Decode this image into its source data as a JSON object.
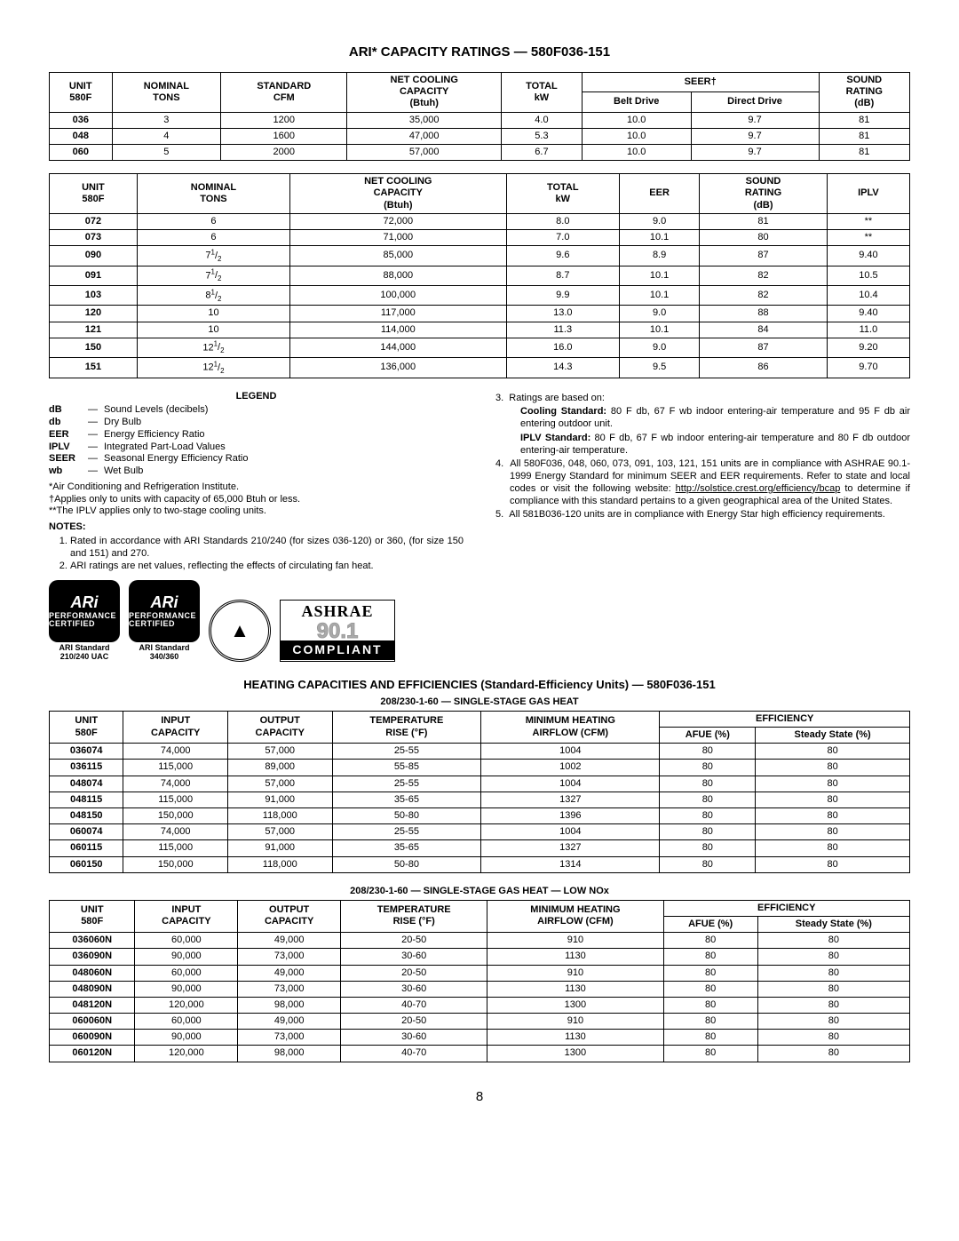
{
  "page_title": "ARI* CAPACITY RATINGS — 580F036-151",
  "page_number": "8",
  "table1": {
    "headers": {
      "unit": "UNIT 580F",
      "nominal_tons": "NOMINAL TONS",
      "standard_cfm": "STANDARD CFM",
      "net_cooling": "NET COOLING CAPACITY (Btuh)",
      "total_kw": "TOTAL kW",
      "seer": "SEER†",
      "belt_drive": "Belt Drive",
      "direct_drive": "Direct Drive",
      "sound": "SOUND RATING (dB)"
    },
    "rows": [
      {
        "u": "036",
        "tons": "3",
        "cfm": "1200",
        "net": "35,000",
        "kw": "4.0",
        "bd": "10.0",
        "dd": "9.7",
        "db": "81"
      },
      {
        "u": "048",
        "tons": "4",
        "cfm": "1600",
        "net": "47,000",
        "kw": "5.3",
        "bd": "10.0",
        "dd": "9.7",
        "db": "81"
      },
      {
        "u": "060",
        "tons": "5",
        "cfm": "2000",
        "net": "57,000",
        "kw": "6.7",
        "bd": "10.0",
        "dd": "9.7",
        "db": "81"
      }
    ]
  },
  "table2": {
    "headers": {
      "unit": "UNIT 580F",
      "nominal_tons": "NOMINAL TONS",
      "net_cooling": "NET COOLING CAPACITY (Btuh)",
      "total_kw": "TOTAL kW",
      "eer": "EER",
      "sound": "SOUND RATING (dB)",
      "iplv": "IPLV"
    },
    "rows": [
      {
        "u": "072",
        "tons": "6",
        "net": "72,000",
        "kw": "8.0",
        "eer": "9.0",
        "db": "81",
        "ip": "**"
      },
      {
        "u": "073",
        "tons": "6",
        "net": "71,000",
        "kw": "7.0",
        "eer": "10.1",
        "db": "80",
        "ip": "**"
      },
      {
        "u": "090",
        "tons": "7½",
        "net": "85,000",
        "kw": "9.6",
        "eer": "8.9",
        "db": "87",
        "ip": "9.40"
      },
      {
        "u": "091",
        "tons": "7½",
        "net": "88,000",
        "kw": "8.7",
        "eer": "10.1",
        "db": "82",
        "ip": "10.5"
      },
      {
        "u": "103",
        "tons": "8½",
        "net": "100,000",
        "kw": "9.9",
        "eer": "10.1",
        "db": "82",
        "ip": "10.4"
      },
      {
        "u": "120",
        "tons": "10",
        "net": "117,000",
        "kw": "13.0",
        "eer": "9.0",
        "db": "88",
        "ip": "9.40"
      },
      {
        "u": "121",
        "tons": "10",
        "net": "114,000",
        "kw": "11.3",
        "eer": "10.1",
        "db": "84",
        "ip": "11.0"
      },
      {
        "u": "150",
        "tons": "12½",
        "net": "144,000",
        "kw": "16.0",
        "eer": "9.0",
        "db": "87",
        "ip": "9.20"
      },
      {
        "u": "151",
        "tons": "12½",
        "net": "136,000",
        "kw": "14.3",
        "eer": "9.5",
        "db": "86",
        "ip": "9.70"
      }
    ]
  },
  "legend": {
    "title": "LEGEND",
    "items": [
      {
        "t": "dB",
        "d": "Sound Levels (decibels)"
      },
      {
        "t": "db",
        "d": "Dry Bulb"
      },
      {
        "t": "EER",
        "d": "Energy Efficiency Ratio"
      },
      {
        "t": "IPLV",
        "d": "Integrated Part-Load Values"
      },
      {
        "t": "SEER",
        "d": "Seasonal Energy Efficiency Ratio"
      },
      {
        "t": "wb",
        "d": "Wet Bulb"
      }
    ],
    "footnotes": [
      "*Air Conditioning and Refrigeration Institute.",
      "†Applies only to units with capacity of 65,000 Btuh or less.",
      "**The IPLV applies only to two-stage cooling units."
    ],
    "notes_title": "NOTES:",
    "notes": [
      "Rated in accordance with ARI Standards 210/240 (for sizes 036-120) or 360, (for size 150 and 151) and 270.",
      "ARI ratings are net values, reflecting the effects of circulating fan heat."
    ]
  },
  "right_notes": [
    {
      "n": "3.",
      "t": "Ratings are based on:",
      "sub": [
        {
          "b": "Cooling Standard:",
          "t": " 80 F db, 67 F wb indoor entering-air temperature and 95 F db air entering outdoor unit."
        },
        {
          "b": "IPLV Standard:",
          "t": " 80 F db, 67 F wb indoor entering-air temperature and 80 F db outdoor entering-air temperature."
        }
      ]
    },
    {
      "n": "4.",
      "t": "All 580F036, 048, 060, 073, 091, 103, 121, 151 units are in compliance with ASHRAE 90.1-1999 Energy Standard for minimum SEER and EER requirements. Refer to state and local codes or visit the following website: ",
      "url": "http://solstice.crest.org/efficiency/bcap",
      "t2": " to determine if compliance with this standard pertains to a given geographical area of the United States."
    },
    {
      "n": "5.",
      "t": "All 581B036-120 units are in compliance with Energy Star high efficiency requirements."
    }
  ],
  "logos": {
    "ari_word": "ARi",
    "ari_sub": "PERFORMANCE CERTIFIED",
    "cap1": "ARI Standard 210/240 UAC",
    "cap2": "ARI Standard 340/360",
    "seal": "▲",
    "ashrae_l1": "ASHRAE",
    "ashrae_l2": "90.1",
    "ashrae_l3": "COMPLIANT"
  },
  "heating_title": "HEATING CAPACITIES AND EFFICIENCIES (Standard-Efficiency Units) — 580F036-151",
  "table3": {
    "caption": "208/230-1-60 — SINGLE-STAGE GAS HEAT",
    "headers": {
      "unit": "UNIT 580F",
      "input": "INPUT CAPACITY",
      "output": "OUTPUT CAPACITY",
      "rise": "TEMPERATURE RISE (°F)",
      "airflow": "MINIMUM HEATING AIRFLOW (CFM)",
      "eff": "EFFICIENCY",
      "afue": "AFUE (%)",
      "ss": "Steady State (%)"
    },
    "rows": [
      {
        "u": "036074",
        "in": "74,000",
        "out": "57,000",
        "r": "25-55",
        "af": "1004",
        "af2": "80",
        "ss": "80"
      },
      {
        "u": "036115",
        "in": "115,000",
        "out": "89,000",
        "r": "55-85",
        "af": "1002",
        "af2": "80",
        "ss": "80"
      },
      {
        "u": "048074",
        "in": "74,000",
        "out": "57,000",
        "r": "25-55",
        "af": "1004",
        "af2": "80",
        "ss": "80"
      },
      {
        "u": "048115",
        "in": "115,000",
        "out": "91,000",
        "r": "35-65",
        "af": "1327",
        "af2": "80",
        "ss": "80"
      },
      {
        "u": "048150",
        "in": "150,000",
        "out": "118,000",
        "r": "50-80",
        "af": "1396",
        "af2": "80",
        "ss": "80"
      },
      {
        "u": "060074",
        "in": "74,000",
        "out": "57,000",
        "r": "25-55",
        "af": "1004",
        "af2": "80",
        "ss": "80"
      },
      {
        "u": "060115",
        "in": "115,000",
        "out": "91,000",
        "r": "35-65",
        "af": "1327",
        "af2": "80",
        "ss": "80"
      },
      {
        "u": "060150",
        "in": "150,000",
        "out": "118,000",
        "r": "50-80",
        "af": "1314",
        "af2": "80",
        "ss": "80"
      }
    ]
  },
  "table4": {
    "caption": "208/230-1-60 — SINGLE-STAGE GAS HEAT — LOW NOx",
    "rows": [
      {
        "u": "036060N",
        "in": "60,000",
        "out": "49,000",
        "r": "20-50",
        "af": "910",
        "af2": "80",
        "ss": "80"
      },
      {
        "u": "036090N",
        "in": "90,000",
        "out": "73,000",
        "r": "30-60",
        "af": "1130",
        "af2": "80",
        "ss": "80"
      },
      {
        "u": "048060N",
        "in": "60,000",
        "out": "49,000",
        "r": "20-50",
        "af": "910",
        "af2": "80",
        "ss": "80"
      },
      {
        "u": "048090N",
        "in": "90,000",
        "out": "73,000",
        "r": "30-60",
        "af": "1130",
        "af2": "80",
        "ss": "80"
      },
      {
        "u": "048120N",
        "in": "120,000",
        "out": "98,000",
        "r": "40-70",
        "af": "1300",
        "af2": "80",
        "ss": "80"
      },
      {
        "u": "060060N",
        "in": "60,000",
        "out": "49,000",
        "r": "20-50",
        "af": "910",
        "af2": "80",
        "ss": "80"
      },
      {
        "u": "060090N",
        "in": "90,000",
        "out": "73,000",
        "r": "30-60",
        "af": "1130",
        "af2": "80",
        "ss": "80"
      },
      {
        "u": "060120N",
        "in": "120,000",
        "out": "98,000",
        "r": "40-70",
        "af": "1300",
        "af2": "80",
        "ss": "80"
      }
    ]
  }
}
